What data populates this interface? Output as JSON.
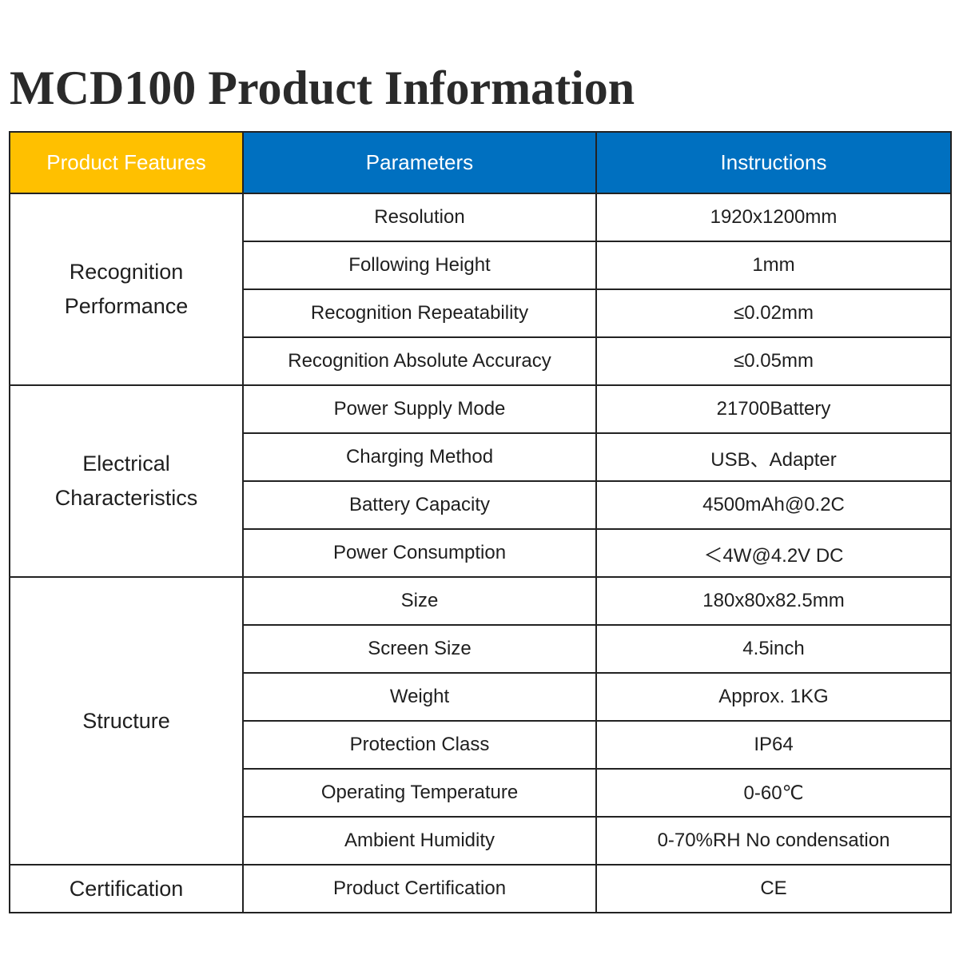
{
  "title": "MCD100 Product Information",
  "colors": {
    "features_header_bg": "#ffc000",
    "header_bg": "#0070c0",
    "header_text": "#ffffff",
    "border": "#222222"
  },
  "table": {
    "headers": {
      "features": "Product Features",
      "parameters": "Parameters",
      "instructions": "Instructions"
    },
    "groups": [
      {
        "label_lines": [
          "Recognition",
          "Performance"
        ],
        "rows": [
          {
            "parameter": "Resolution",
            "value": "1920x1200mm"
          },
          {
            "parameter": "Following Height",
            "value": "1mm"
          },
          {
            "parameter": "Recognition Repeatability",
            "value": "≤0.02mm"
          },
          {
            "parameter": "Recognition Absolute Accuracy",
            "value": "≤0.05mm"
          }
        ]
      },
      {
        "label_lines": [
          "Electrical",
          "Characteristics"
        ],
        "rows": [
          {
            "parameter": "Power Supply Mode",
            "value": "21700Battery"
          },
          {
            "parameter": "Charging Method",
            "value": "USB、Adapter"
          },
          {
            "parameter": "Battery Capacity",
            "value": "4500mAh@0.2C"
          },
          {
            "parameter": "Power Consumption",
            "value": "＜4W@4.2V DC"
          }
        ]
      },
      {
        "label_lines": [
          "Structure"
        ],
        "rows": [
          {
            "parameter": "Size",
            "value": "180x80x82.5mm"
          },
          {
            "parameter": "Screen Size",
            "value": "4.5inch"
          },
          {
            "parameter": "Weight",
            "value": "Approx. 1KG"
          },
          {
            "parameter": "Protection Class",
            "value": "IP64"
          },
          {
            "parameter": "Operating Temperature",
            "value": "0-60℃"
          },
          {
            "parameter": "Ambient Humidity",
            "value": "0-70%RH No condensation"
          }
        ]
      },
      {
        "label_lines": [
          "Certification"
        ],
        "rows": [
          {
            "parameter": "Product Certification",
            "value": "CE"
          }
        ]
      }
    ]
  }
}
